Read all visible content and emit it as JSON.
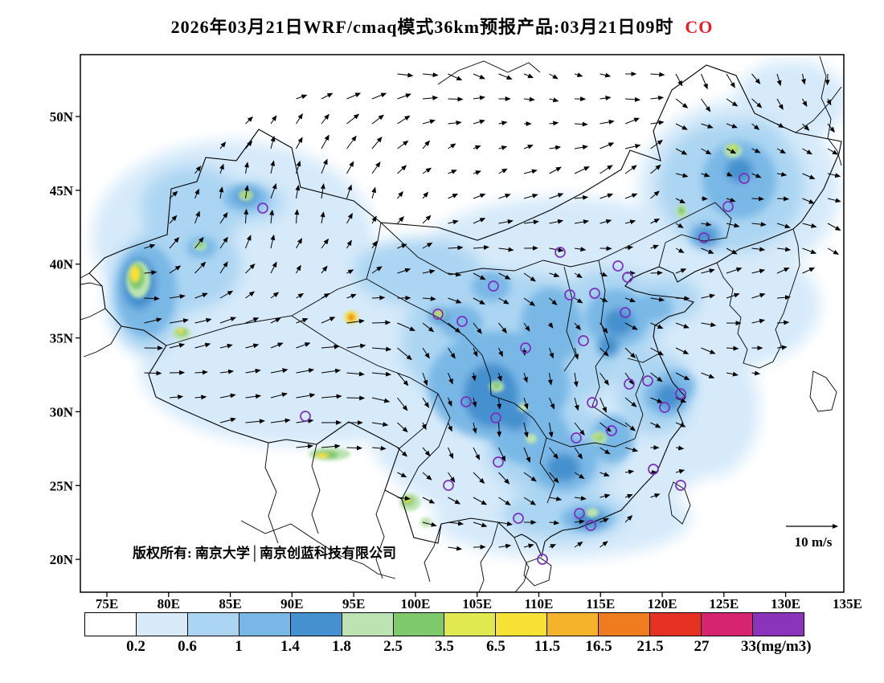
{
  "title": {
    "text": "2026年03月21日WRF/cmaq模式36km预报产品:03月21日09时",
    "species": "CO",
    "species_color": "#ee1c25"
  },
  "axes": {
    "lat_labels": [
      "50N",
      "45N",
      "40N",
      "35N",
      "30N",
      "25N",
      "20N"
    ],
    "lon_labels": [
      "75E",
      "80E",
      "85E",
      "90E",
      "95E",
      "100E",
      "105E",
      "110E",
      "115E",
      "120E",
      "125E",
      "130E",
      "135E"
    ]
  },
  "map": {
    "copyright": "版权所有: 南京大学│南京创蓝科技有限公司",
    "wind_scale": "10 m/s",
    "station_marker_color": "#7c2fbe"
  },
  "colorbar": {
    "labels": [
      "0.2",
      "0.6",
      "1",
      "1.4",
      "1.8",
      "2.5",
      "3.5",
      "6.5",
      "11.5",
      "16.5",
      "21.5",
      "27",
      "33(mg/m3)"
    ],
    "colors": [
      "#ffffff",
      "#d6eafa",
      "#abd5f2",
      "#79b8e6",
      "#4590ce",
      "#bce3b1",
      "#7fc96d",
      "#e0e94f",
      "#f7e135",
      "#f5b32b",
      "#ef7d20",
      "#e63222",
      "#d6246e",
      "#8a33bb"
    ]
  },
  "chart_data": {
    "type": "heatmap",
    "variable": "CO",
    "units": "mg/m3",
    "model": "WRF/cmaq",
    "resolution": "36km",
    "forecast_date": "2026年03月21日",
    "valid_time": "03月21日09时",
    "lon_range": [
      "75E",
      "135E"
    ],
    "lat_range": [
      "20N",
      "50N"
    ],
    "contour_levels": [
      0.2,
      0.6,
      1,
      1.4,
      1.8,
      2.5,
      3.5,
      6.5,
      11.5,
      16.5,
      21.5,
      27,
      33
    ],
    "wind_reference": "10 m/s",
    "legend_position": "bottom"
  }
}
